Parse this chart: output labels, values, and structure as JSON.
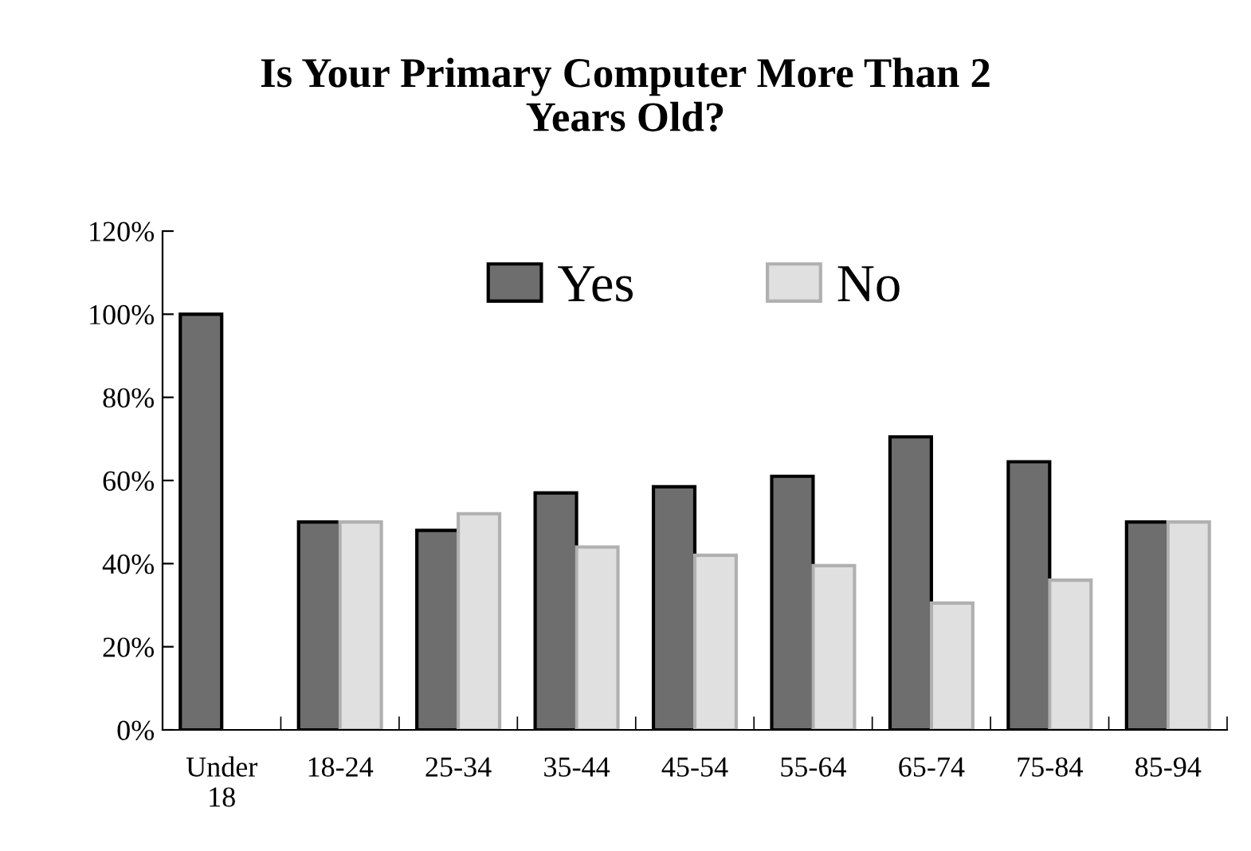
{
  "chart_data": {
    "type": "bar",
    "title": "Is Your Primary Computer More Than 2\nYears Old?",
    "categories": [
      "Under\n18",
      "18-24",
      "25-34",
      "35-44",
      "45-54",
      "55-64",
      "65-74",
      "75-84",
      "85-94"
    ],
    "series": [
      {
        "name": "Yes",
        "color": "#6e6e6e",
        "values": [
          100,
          50,
          48,
          57,
          58.5,
          61,
          70.5,
          64.5,
          50
        ]
      },
      {
        "name": "No",
        "color": "#e0e0e0",
        "values": [
          null,
          50,
          52,
          44,
          42,
          39.5,
          30.5,
          36,
          50
        ]
      }
    ],
    "ylim": [
      0,
      120
    ],
    "yticks": [
      {
        "value": 0,
        "label": "0%"
      },
      {
        "value": 20,
        "label": "20%"
      },
      {
        "value": 40,
        "label": "40%"
      },
      {
        "value": 60,
        "label": "60%"
      },
      {
        "value": 80,
        "label": "80%"
      },
      {
        "value": 100,
        "label": "100%"
      },
      {
        "value": 120,
        "label": "120%"
      }
    ],
    "grid": false,
    "legend": "top"
  }
}
